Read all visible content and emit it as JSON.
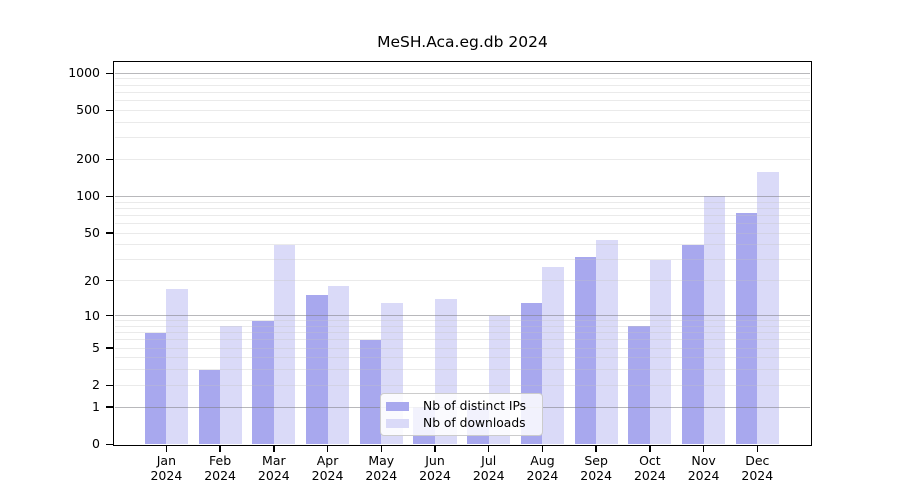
{
  "title": "MeSH.Aca.eg.db 2024",
  "colors": {
    "ips_bar": "#a8a8ee",
    "downloads_bar": "#dadaf8",
    "axis": "#000000",
    "grid_major": "#7e7e84",
    "grid_minor": "#c4c4c4",
    "legend_border": "#cccccc",
    "text": "#000000"
  },
  "legend": {
    "items": [
      {
        "id": "ips",
        "label": "Nb of distinct IPs"
      },
      {
        "id": "downloads",
        "label": "Nb of downloads"
      }
    ]
  },
  "chart_data": {
    "type": "bar",
    "title": "MeSH.Aca.eg.db 2024",
    "xlabel": "",
    "ylabel": "",
    "y_scale": "log10(1+y)",
    "year_label": "2024",
    "categories": [
      "Jan",
      "Feb",
      "Mar",
      "Apr",
      "May",
      "Jun",
      "Jul",
      "Aug",
      "Sep",
      "Oct",
      "Nov",
      "Dec"
    ],
    "series": [
      {
        "name": "Nb of distinct IPs",
        "color_key": "ips_bar",
        "values": [
          7,
          3,
          9,
          15,
          6,
          1,
          1,
          13,
          32,
          8,
          40,
          73
        ]
      },
      {
        "name": "Nb of downloads",
        "color_key": "downloads_bar",
        "values": [
          17,
          8,
          40,
          18,
          13,
          14,
          10,
          26,
          44,
          30,
          100,
          157
        ]
      }
    ],
    "yticks": [
      0,
      1,
      2,
      5,
      10,
      20,
      50,
      100,
      200,
      500,
      1000
    ],
    "ylim": [
      0,
      1250
    ],
    "grid": {
      "major_values": [
        1,
        10,
        100,
        1000
      ],
      "minor_values": [
        2,
        3,
        4,
        5,
        6,
        7,
        8,
        9,
        20,
        30,
        40,
        50,
        60,
        70,
        80,
        90,
        200,
        300,
        400,
        500,
        600,
        700,
        800,
        900
      ]
    },
    "legend_position": "lower-center"
  }
}
